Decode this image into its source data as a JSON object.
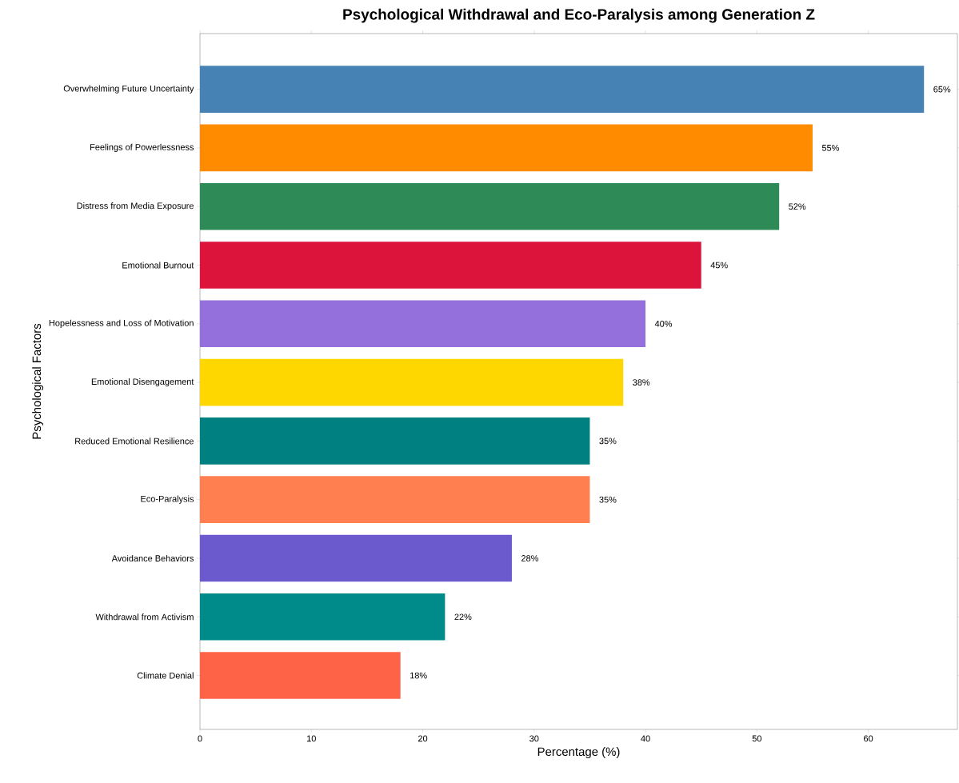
{
  "chart_data": {
    "type": "bar",
    "orientation": "horizontal",
    "title": "Psychological Withdrawal and Eco-Paralysis among Generation Z",
    "xlabel": "Percentage (%)",
    "ylabel": "Psychological Factors",
    "categories": [
      "Overwhelming Future Uncertainty",
      "Feelings of Powerlessness",
      "Distress from Media Exposure",
      "Emotional Burnout",
      "Hopelessness and Loss of Motivation",
      "Emotional Disengagement",
      "Reduced Emotional Resilience",
      "Eco-Paralysis",
      "Avoidance Behaviors",
      "Withdrawal from Activism",
      "Climate Denial"
    ],
    "values": [
      65,
      55,
      52,
      45,
      40,
      38,
      35,
      35,
      28,
      22,
      18
    ],
    "value_labels": [
      "65%",
      "55%",
      "52%",
      "45%",
      "40%",
      "38%",
      "35%",
      "35%",
      "28%",
      "22%",
      "18%"
    ],
    "colors": [
      "#4682b4",
      "#ff8c00",
      "#2e8b57",
      "#dc143c",
      "#9370db",
      "#ffd700",
      "#008080",
      "#ff7f50",
      "#6a5acd",
      "#008b8b",
      "#ff6347"
    ],
    "xlim": [
      0,
      68
    ],
    "xticks": [
      0,
      10,
      20,
      30,
      40,
      50,
      60
    ]
  }
}
